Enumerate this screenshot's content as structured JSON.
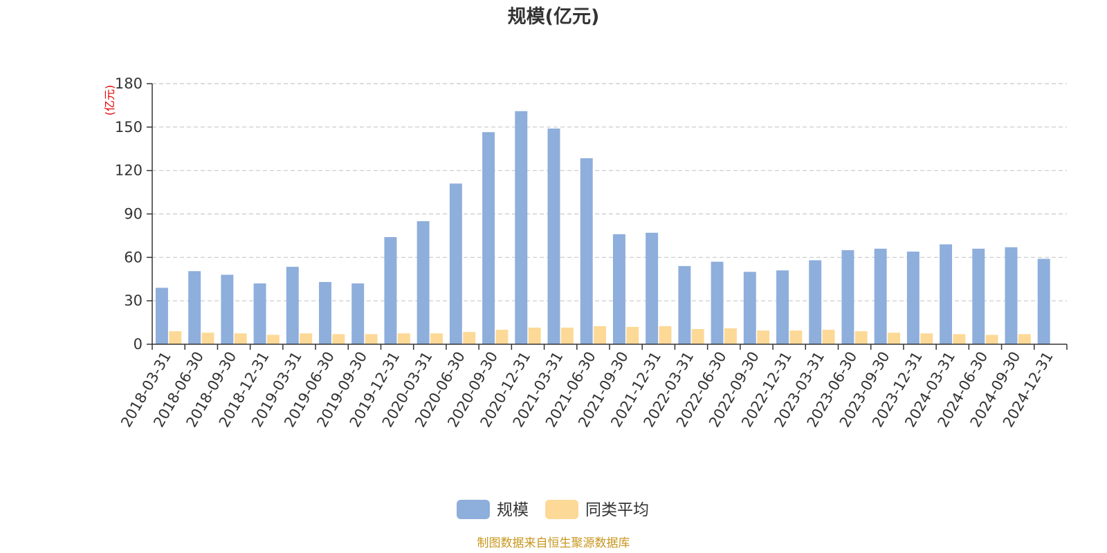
{
  "chart_data": {
    "type": "bar",
    "title": "规模(亿元)",
    "ylabel": "(亿元)",
    "ylim": [
      0,
      180
    ],
    "yticks": [
      0,
      30,
      60,
      90,
      120,
      150,
      180
    ],
    "grid": true,
    "legend_position": "bottom",
    "categories": [
      "2018-03-31",
      "2018-06-30",
      "2018-09-30",
      "2018-12-31",
      "2019-03-31",
      "2019-06-30",
      "2019-09-30",
      "2019-12-31",
      "2020-03-31",
      "2020-06-30",
      "2020-09-30",
      "2020-12-31",
      "2021-03-31",
      "2021-06-30",
      "2021-09-30",
      "2021-12-31",
      "2022-03-31",
      "2022-06-30",
      "2022-09-30",
      "2022-12-31",
      "2023-03-31",
      "2023-06-30",
      "2023-09-30",
      "2023-12-31",
      "2024-03-31",
      "2024-06-30",
      "2024-09-30",
      "2024-12-31"
    ],
    "series": [
      {
        "name": "规模",
        "color": "#8eaedc",
        "values": [
          39,
          50.5,
          48,
          42,
          53.5,
          43,
          42,
          74,
          85,
          111,
          146.5,
          161,
          149,
          128.5,
          76,
          77,
          54,
          57,
          50,
          51,
          58,
          65,
          66,
          64,
          69,
          66,
          67,
          59
        ]
      },
      {
        "name": "同类平均",
        "color": "#fdd997",
        "values": [
          9,
          8,
          7.5,
          6.5,
          7.5,
          7,
          7,
          7.5,
          7.5,
          8.5,
          10,
          11.5,
          11.5,
          12.5,
          12,
          12.5,
          10.5,
          11,
          9.5,
          9.5,
          10,
          9,
          8,
          7.5,
          7,
          6.5,
          7,
          null
        ]
      }
    ],
    "source": "制图数据来自恒生聚源数据库"
  }
}
